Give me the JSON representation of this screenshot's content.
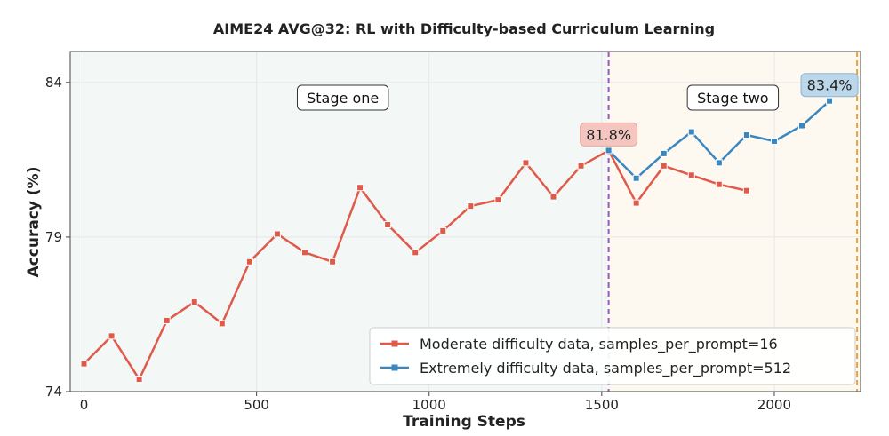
{
  "chart_data": {
    "type": "line",
    "title": "AIME24 AVG@32: RL with Difficulty-based Curriculum Learning",
    "xlabel": "Training Steps",
    "ylabel": "Accuracy (%)",
    "xlim": [
      -40,
      2250
    ],
    "ylim": [
      74,
      85
    ],
    "xticks": [
      0,
      500,
      1000,
      1500,
      2000
    ],
    "yticks": [
      74,
      79,
      84
    ],
    "xtick_labels": [
      "0",
      "500",
      "1000",
      "1500",
      "2000"
    ],
    "ytick_labels": [
      "74",
      "79",
      "84"
    ],
    "grid": true,
    "legend_position": "lower-right",
    "regions": [
      {
        "name": "stage-one",
        "x_start": -40,
        "x_end": 1520,
        "color": "#f3f8f7",
        "label": "Stage one",
        "label_x": 750
      },
      {
        "name": "stage-two",
        "x_start": 1520,
        "x_end": 2250,
        "color": "#fdf9f1",
        "label": "Stage two",
        "label_x": 1880
      }
    ],
    "vlines": [
      {
        "name": "stage-boundary-line",
        "x": 1520,
        "color": "#9b59b6"
      },
      {
        "name": "final-step-line",
        "x": 2240,
        "color": "#e8a33d"
      }
    ],
    "series": [
      {
        "name": "Moderate difficulty data, samples_per_prompt=16",
        "color": "#e05a4a",
        "x": [
          0,
          80,
          160,
          240,
          320,
          400,
          480,
          560,
          640,
          720,
          800,
          880,
          960,
          1040,
          1120,
          1200,
          1280,
          1360,
          1440,
          1520,
          1600,
          1680,
          1760,
          1840,
          1920
        ],
        "values": [
          74.9,
          75.8,
          74.4,
          76.3,
          76.9,
          76.2,
          78.2,
          79.1,
          78.5,
          78.2,
          80.6,
          79.4,
          78.5,
          79.2,
          80.0,
          80.2,
          81.4,
          80.3,
          81.3,
          81.8,
          80.1,
          81.3,
          81.0,
          80.7,
          80.5
        ]
      },
      {
        "name": "Extremely difficulty data, samples_per_prompt=512",
        "color": "#3a87c0",
        "x": [
          1520,
          1600,
          1680,
          1760,
          1840,
          1920,
          2000,
          2080,
          2160
        ],
        "values": [
          81.8,
          80.9,
          81.7,
          82.4,
          81.4,
          82.3,
          82.1,
          82.6,
          83.4
        ]
      }
    ],
    "annotations": [
      {
        "name": "callout-stage-one-peak",
        "text": "81.8%",
        "x": 1520,
        "y": 81.8,
        "fill": "#f5c6c0",
        "stroke": "#e8a59c"
      },
      {
        "name": "callout-final-peak",
        "text": "83.4%",
        "x": 2160,
        "y": 83.4,
        "fill": "#bcd6ea",
        "stroke": "#8fb3cf"
      }
    ]
  }
}
